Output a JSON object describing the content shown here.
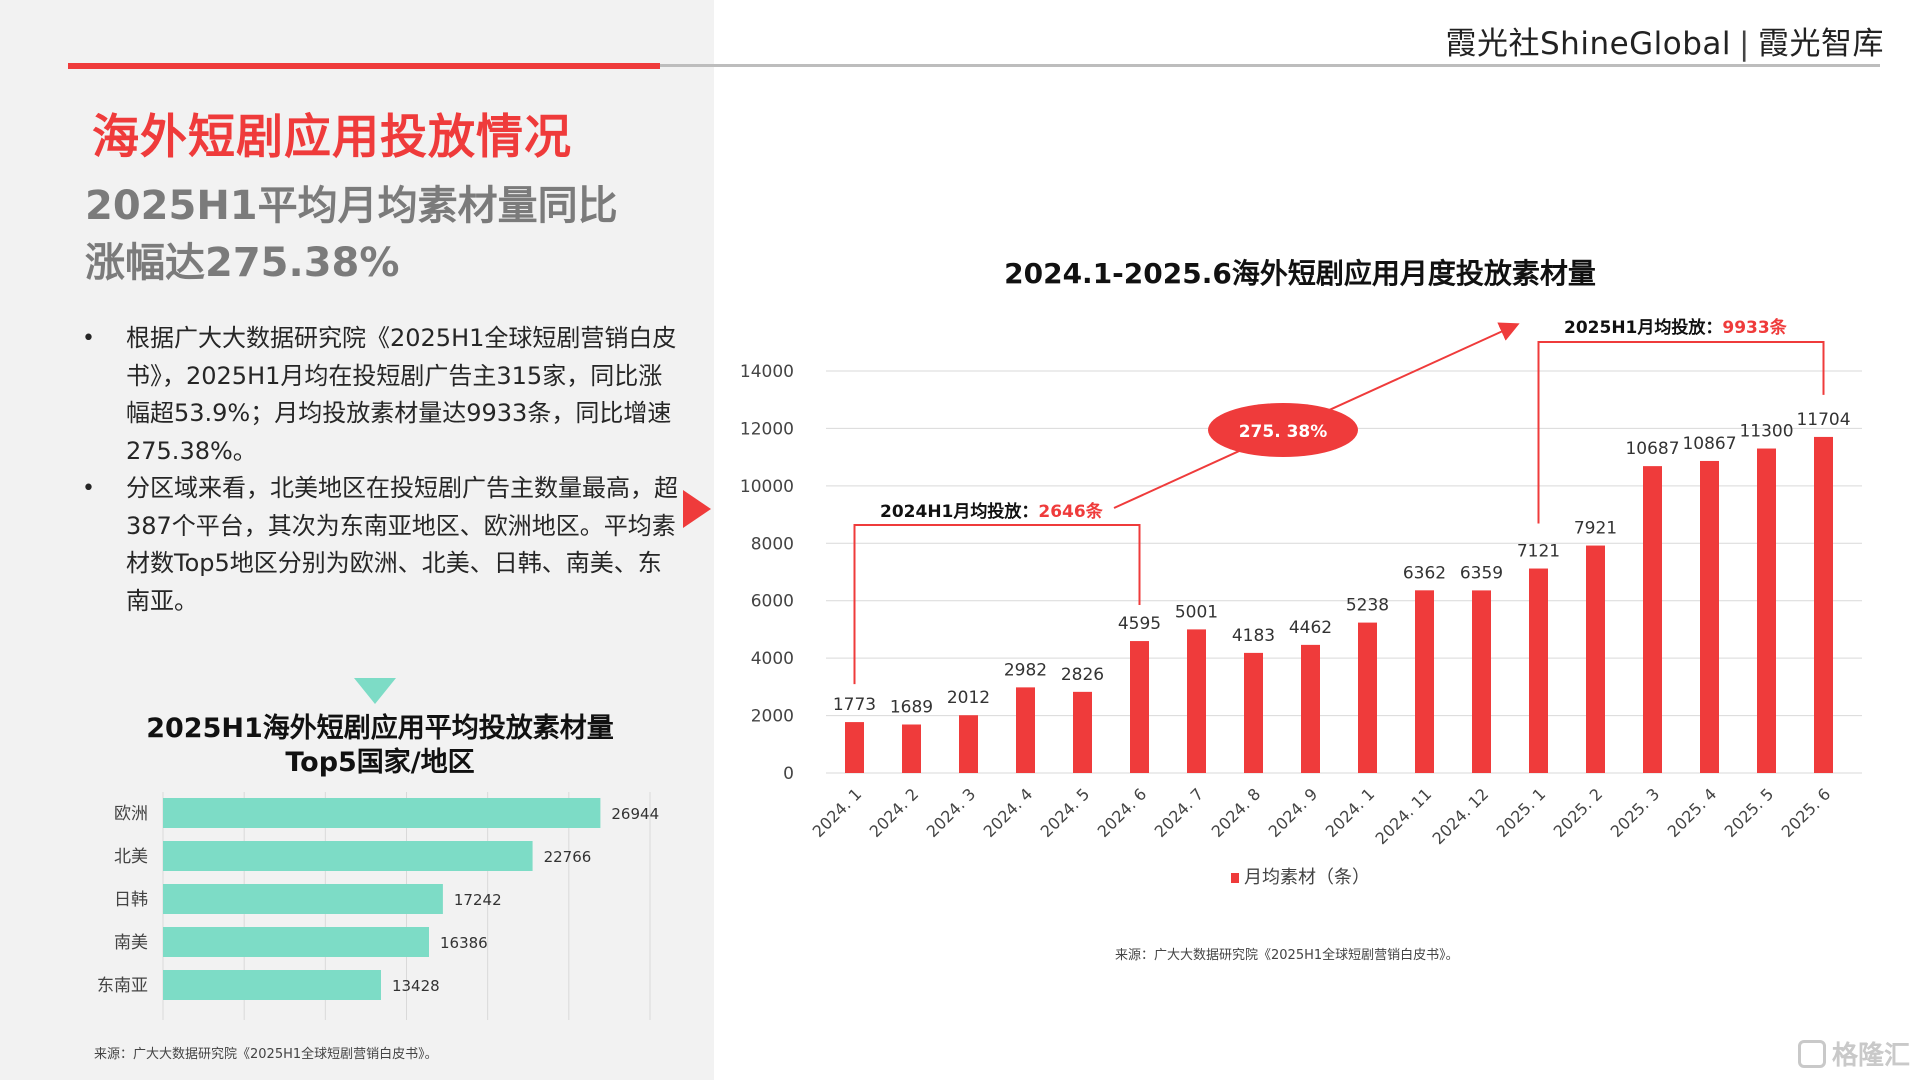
{
  "header": {
    "brand_cn": "霞光社",
    "brand_en": "ShineGlobal",
    "brand_separator": "|",
    "brand_library": "霞光智库"
  },
  "left": {
    "title": "海外短剧应用投放情况",
    "subtitle_line1": "2025H1平均月均素材量同比",
    "subtitle_line2": "涨幅达275.38%",
    "bullets": [
      "根据广大大数据研究院《2025H1全球短剧营销白皮书》，2025H1月均在投短剧广告主315家，同比涨幅超53.9%；月均投放素材量达9933条，同比增速275.38%。",
      "分区域来看，北美地区在投短剧广告主数量最高，超387个平台，其次为东南亚地区、欧洲地区。平均素材数Top5地区分别为欧洲、北美、日韩、南美、东南亚。"
    ],
    "bullet_symbol": "•",
    "source": "来源：广大大数据研究院《2025H1全球短剧营销白皮书》。"
  },
  "right": {
    "source": "来源：广大大数据研究院《2025H1全球短剧营销白皮书》。",
    "annotations": {
      "h1_2024_label": "2024H1月均投放：",
      "h1_2024_value": "2646条",
      "h1_2025_label": "2025H1月均投放：",
      "h1_2025_value": "9933条",
      "growth": "275. 38%"
    }
  },
  "watermark": "格隆汇",
  "colors": {
    "accent_red": "#ef3b3b",
    "teal": "#7ddcc6",
    "panel_gray": "#f2f2f2"
  },
  "chart_data": [
    {
      "type": "bar",
      "orientation": "horizontal",
      "title_line1": "2025H1海外短剧应用平均投放素材量",
      "title_line2": "Top5国家/地区",
      "categories": [
        "欧洲",
        "北美",
        "日韩",
        "南美",
        "东南亚"
      ],
      "values": [
        26944,
        22766,
        17242,
        16386,
        13428
      ],
      "xlim": [
        0,
        30000
      ],
      "grid": true,
      "color": "#7ddcc6"
    },
    {
      "type": "bar",
      "title": "2024.1-2025.6海外短剧应用月度投放素材量",
      "categories": [
        "2024. 1",
        "2024. 2",
        "2024. 3",
        "2024. 4",
        "2024. 5",
        "2024. 6",
        "2024. 7",
        "2024. 8",
        "2024. 9",
        "2024. 1",
        "2024. 11",
        "2024. 12",
        "2025. 1",
        "2025. 2",
        "2025. 3",
        "2025. 4",
        "2025. 5",
        "2025. 6"
      ],
      "series": [
        {
          "name": "月均素材（条）",
          "values": [
            1773,
            1689,
            2012,
            2982,
            2826,
            4595,
            5001,
            4183,
            4462,
            5238,
            6362,
            6359,
            7121,
            7921,
            10687,
            10867,
            11300,
            11704
          ]
        }
      ],
      "ylim": [
        0,
        14000
      ],
      "yticks": [
        "0",
        "2000",
        "4000",
        "6000",
        "8000",
        "10000",
        "12000",
        "14000"
      ],
      "grid": true,
      "legend": "bottom",
      "color": "#ef3b3b"
    }
  ]
}
